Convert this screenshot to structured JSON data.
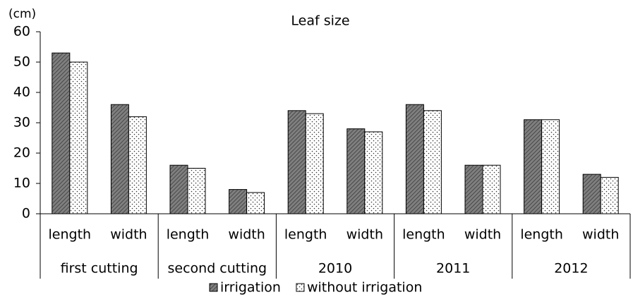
{
  "chart_data": {
    "type": "bar",
    "title": "Leaf size",
    "y_label": "(cm)",
    "categories": [
      "length",
      "width",
      "length",
      "width",
      "length",
      "width",
      "length",
      "width",
      "length",
      "width"
    ],
    "groups": [
      "first cutting",
      "second cutting",
      "2010",
      "2011",
      "2012"
    ],
    "series": [
      {
        "name": "irrigation",
        "color": "#7f7f7f",
        "pattern": "hatch",
        "values": [
          53,
          36,
          16,
          8,
          34,
          28,
          36,
          16,
          31,
          13
        ]
      },
      {
        "name": "without irrigation",
        "color": "#ffffff",
        "pattern": "dots",
        "values": [
          50,
          32,
          15,
          7,
          33,
          27,
          34,
          16,
          31,
          12
        ]
      }
    ],
    "ylim": [
      0,
      60
    ],
    "yticks": [
      0,
      10,
      20,
      30,
      40,
      50,
      60
    ],
    "grid": false,
    "legend": "bottom"
  }
}
